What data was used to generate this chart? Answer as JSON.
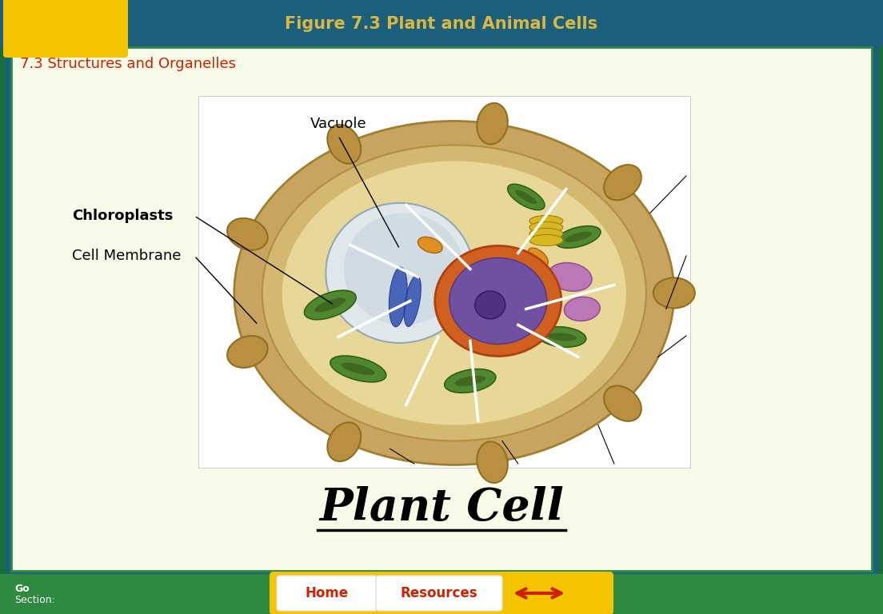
{
  "bg_outer": "#1a6b3c",
  "bg_teal_top": "#1b607a",
  "bg_main": "#fafae8",
  "yellow_box_color": "#f5c400",
  "teal_border_color": "#1b607a",
  "green_border_color": "#2d8a3e",
  "title_top": "Figure 7.3 Plant and Animal Cells",
  "title_top_color": "#f0c040",
  "subtitle": "7.3 Structures and Organelles",
  "subtitle_color": "#cc2200",
  "label_vacuole": "Vacuole",
  "label_chloroplasts": "Chloroplasts",
  "label_cell_membrane": "Cell Membrane",
  "main_title": "Plant Cell",
  "main_title_color": "#000000",
  "bottom_bar_color": "#2d8a3e",
  "nav_bar_color": "#f5c400",
  "nav_text_home": "Home",
  "nav_text_resources": "Resources",
  "nav_text_color": "#cc2200",
  "go_text": "Go",
  "section_text": "Section:",
  "bottom_text_color": "#ffffff",
  "cell_wall_color": "#c8a460",
  "cell_wall_inner": "#d4b870",
  "cytoplasm_color": "#e8d898",
  "vacuole_color": "#c8d8e0",
  "vacuole_edge": "#a0b8c8",
  "nucleus_rim_color": "#d06020",
  "nucleus_body_color": "#7050a0",
  "nucleolus_color": "#503080",
  "chloro_color": "#508830",
  "chloro_edge": "#306010",
  "er_color": "#3050b0",
  "golgi_color": "#d8b820",
  "mito_color": "#e09020",
  "figsize": [
    11.04,
    7.68
  ],
  "dpi": 100
}
